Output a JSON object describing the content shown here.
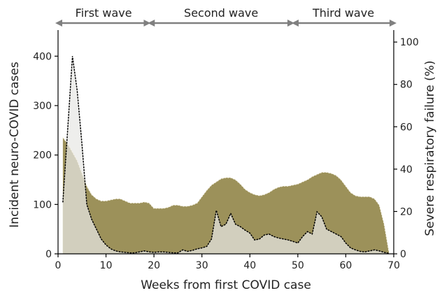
{
  "chart_data": {
    "type": "area",
    "title": "",
    "xlabel": "Weeks from first COVID case",
    "ylabel_left": "Incident neuro-COVID cases",
    "ylabel_right": "Severe respiratory failure (%)",
    "xlim": [
      0,
      70
    ],
    "ylim_left": [
      0,
      450
    ],
    "ylim_right": [
      0,
      105
    ],
    "x_ticks": [
      0,
      10,
      20,
      30,
      40,
      50,
      60,
      70
    ],
    "y_left_ticks": [
      0,
      100,
      200,
      300,
      400
    ],
    "y_right_ticks": [
      0,
      20,
      40,
      60,
      80,
      100
    ],
    "grid": false,
    "waves": [
      {
        "label": "First wave",
        "start": 0,
        "end": 19
      },
      {
        "label": "Second wave",
        "start": 19,
        "end": 49
      },
      {
        "label": "Third wave",
        "start": 49,
        "end": 70
      }
    ],
    "series": [
      {
        "axis": "right",
        "color": "#9c915a",
        "x": [
          1,
          2,
          3,
          4,
          5,
          6,
          7,
          8,
          9,
          10,
          11,
          12,
          13,
          14,
          15,
          16,
          17,
          18,
          19,
          20,
          21,
          22,
          23,
          24,
          25,
          26,
          27,
          28,
          29,
          30,
          31,
          32,
          33,
          34,
          35,
          36,
          37,
          38,
          39,
          40,
          41,
          42,
          43,
          44,
          45,
          46,
          47,
          48,
          49,
          50,
          51,
          52,
          53,
          54,
          55,
          56,
          57,
          58,
          59,
          60,
          61,
          62,
          63,
          64,
          65,
          66,
          67,
          68,
          69
        ],
        "values": [
          55,
          52,
          48,
          44,
          38,
          32,
          28,
          26,
          25,
          25,
          25.5,
          26,
          26,
          25,
          24,
          24,
          24,
          24.5,
          24,
          21.5,
          21.5,
          21.5,
          22,
          23,
          23,
          22.5,
          22.5,
          23,
          24,
          27,
          30,
          32.5,
          34,
          35.5,
          36,
          36,
          35,
          33,
          30.5,
          29,
          28,
          27.5,
          28,
          29,
          30.5,
          31.5,
          32,
          32,
          32.5,
          33,
          34,
          35,
          36.5,
          37.5,
          38.5,
          38.5,
          38,
          37,
          35,
          32,
          29,
          27.5,
          27,
          27,
          27,
          26,
          23,
          14,
          1
        ]
      },
      {
        "axis": "left",
        "color": "#e8e8e4",
        "x": [
          1,
          2,
          3,
          4,
          5,
          6,
          7,
          8,
          9,
          10,
          11,
          12,
          13,
          14,
          15,
          16,
          17,
          18,
          19,
          20,
          21,
          22,
          23,
          24,
          25,
          26,
          27,
          28,
          29,
          30,
          31,
          32,
          33,
          34,
          35,
          36,
          37,
          38,
          39,
          40,
          41,
          42,
          43,
          44,
          45,
          46,
          47,
          48,
          49,
          50,
          51,
          52,
          53,
          54,
          55,
          56,
          57,
          58,
          59,
          60,
          61,
          62,
          63,
          64,
          65,
          66,
          67,
          68,
          69
        ],
        "values": [
          105,
          250,
          400,
          330,
          220,
          100,
          70,
          50,
          30,
          18,
          10,
          6,
          4,
          3,
          2,
          2,
          4,
          6,
          4,
          3,
          4,
          4,
          3,
          2,
          2,
          8,
          5,
          7,
          10,
          12,
          15,
          30,
          88,
          55,
          60,
          82,
          60,
          55,
          48,
          42,
          28,
          30,
          38,
          40,
          35,
          32,
          30,
          28,
          25,
          22,
          35,
          45,
          40,
          85,
          75,
          50,
          45,
          40,
          35,
          22,
          12,
          8,
          5,
          4,
          6,
          8,
          6,
          3,
          1
        ]
      }
    ]
  }
}
